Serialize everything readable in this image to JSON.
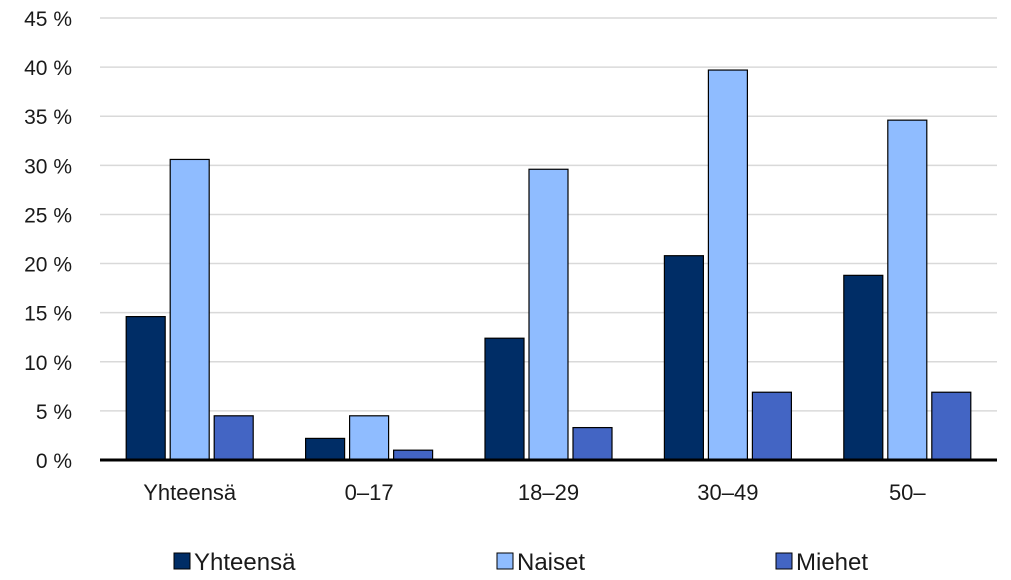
{
  "chart_data": {
    "type": "bar",
    "categories": [
      "Yhteensä",
      "0–17",
      "18–29",
      "30–49",
      "50–"
    ],
    "series": [
      {
        "name": "Yhteensä",
        "values": [
          14.6,
          2.2,
          12.4,
          20.8,
          18.8
        ],
        "color": "#002d66"
      },
      {
        "name": "Naiset",
        "values": [
          30.6,
          4.5,
          29.6,
          39.7,
          34.6
        ],
        "color": "#8fbcff"
      },
      {
        "name": "Miehet",
        "values": [
          4.5,
          1.0,
          3.3,
          6.9,
          6.9
        ],
        "color": "#4365c4"
      }
    ],
    "y_ticks": [
      "0 %",
      "5 %",
      "10 %",
      "15 %",
      "20 %",
      "25 %",
      "30 %",
      "35 %",
      "40 %",
      "45 %"
    ],
    "ylim": [
      0,
      45
    ],
    "grid": true,
    "legend_position": "bottom"
  }
}
